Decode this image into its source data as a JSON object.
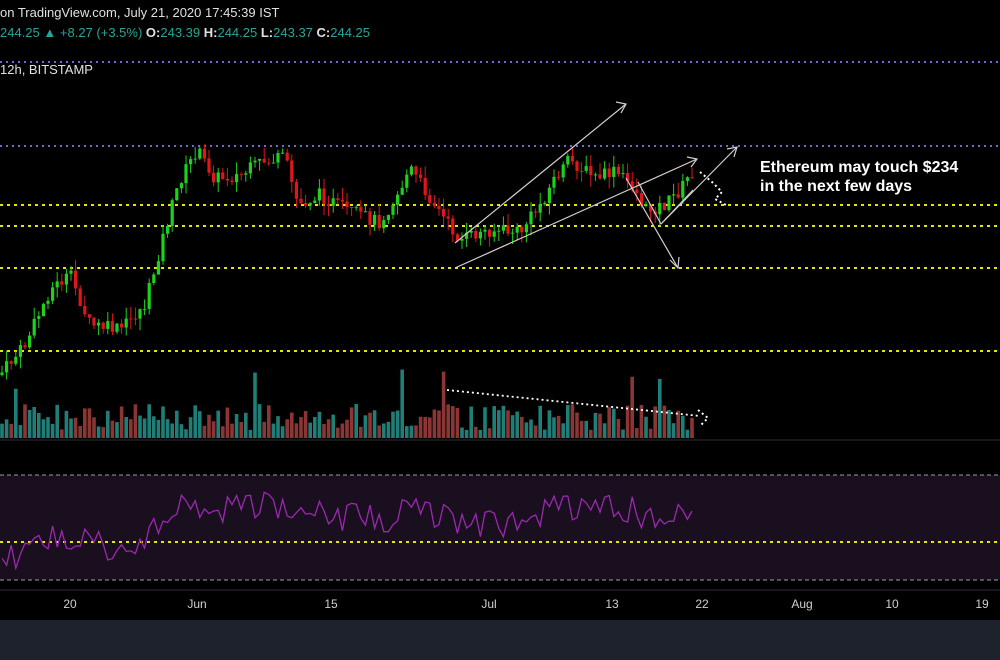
{
  "header": {
    "publish_line": "on TradingView.com, July 21, 2020 17:45:39 IST",
    "price_last": "244.25",
    "change": "+8.27 (+3.5%)",
    "open_label": "O:",
    "open_value": "243.39",
    "high_label": "H:",
    "high_value": "244.25",
    "low_label": "L:",
    "low_value": "243.37",
    "close_label": "C:",
    "close_value": "244.25",
    "up_arrow": "▲"
  },
  "symbol_line": "12h, BITSTAMP",
  "annotation": {
    "line1": "Ethereum may touch $234",
    "line2": "in the next few days"
  },
  "x_axis": {
    "labels": [
      "20",
      "Jun",
      "15",
      "Jul",
      "13",
      "22",
      "Aug",
      "10",
      "19"
    ]
  },
  "colors": {
    "up": "#26a69a",
    "up_candle": "#1dd11d",
    "down": "#e0161a",
    "vol_up": "#1f7f78",
    "vol_down": "#8b3535",
    "support_line": "#e6e600",
    "resistance_line": "#6b6bd6",
    "rsi_line": "#9c27b0",
    "rsi_band": "#1a0f1f",
    "annotation": "#ffffff"
  },
  "chart_data": {
    "type": "candlestick",
    "symbol": "12h, BITSTAMP",
    "x_tick_labels": [
      "20",
      "Jun",
      "15",
      "Jul",
      "13",
      "22",
      "Aug",
      "10",
      "19"
    ],
    "last_price": 244.25,
    "open": 243.39,
    "high": 244.25,
    "low": 243.37,
    "close": 244.25,
    "change": 8.27,
    "change_pct": 3.5,
    "annotation": "Ethereum may touch $234 in the next few days",
    "grid": false,
    "panels": [
      "price",
      "volume",
      "rsi"
    ]
  }
}
